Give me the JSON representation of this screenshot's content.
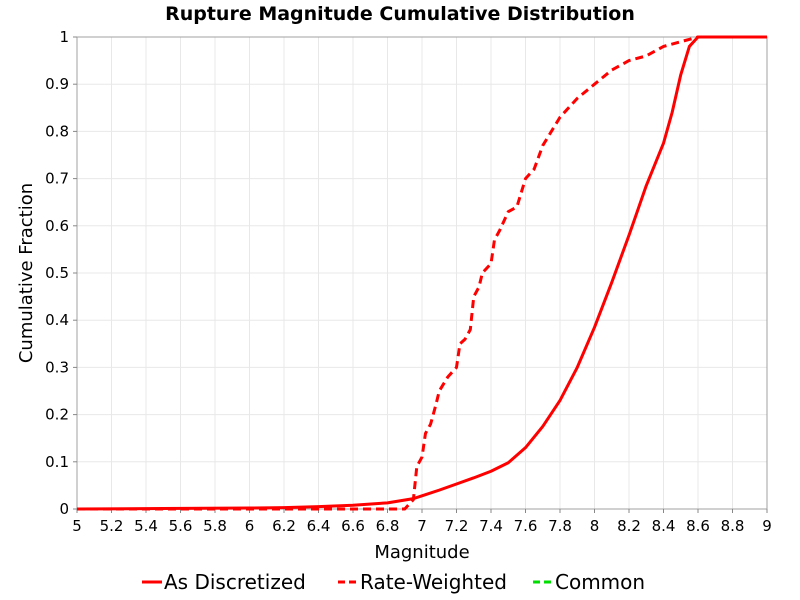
{
  "chart_data": {
    "type": "line",
    "title": "Rupture Magnitude Cumulative Distribution",
    "xlabel": "Magnitude",
    "ylabel": "Cumulative Fraction",
    "xlim": [
      5,
      9
    ],
    "ylim": [
      0,
      1
    ],
    "grid": true,
    "legend_position": "bottom",
    "x_ticks": [
      "5",
      "5.2",
      "5.4",
      "5.6",
      "5.8",
      "6",
      "6.2",
      "6.4",
      "6.6",
      "6.8",
      "7",
      "7.2",
      "7.4",
      "7.6",
      "7.8",
      "8",
      "8.2",
      "8.4",
      "8.6",
      "8.8",
      "9"
    ],
    "y_ticks": [
      "0",
      "0.1",
      "0.2",
      "0.3",
      "0.4",
      "0.5",
      "0.6",
      "0.7",
      "0.8",
      "0.9",
      "1"
    ],
    "series": [
      {
        "name": "As Discretized",
        "color": "#ff0000",
        "dash": "solid",
        "x": [
          5.0,
          5.5,
          6.0,
          6.2,
          6.4,
          6.6,
          6.8,
          6.95,
          7.0,
          7.1,
          7.2,
          7.3,
          7.4,
          7.5,
          7.6,
          7.7,
          7.8,
          7.9,
          8.0,
          8.1,
          8.2,
          8.3,
          8.4,
          8.45,
          8.5,
          8.55,
          8.6,
          8.7,
          9.0
        ],
        "y": [
          0.0,
          0.001,
          0.002,
          0.003,
          0.005,
          0.008,
          0.013,
          0.022,
          0.028,
          0.04,
          0.053,
          0.066,
          0.08,
          0.098,
          0.13,
          0.175,
          0.23,
          0.3,
          0.385,
          0.48,
          0.58,
          0.685,
          0.775,
          0.84,
          0.92,
          0.98,
          1.0,
          1.0,
          1.0
        ]
      },
      {
        "name": "Rate-Weighted",
        "color": "#ff0000",
        "dash": "dashed",
        "x": [
          5.0,
          6.0,
          6.5,
          6.9,
          6.95,
          6.97,
          7.0,
          7.02,
          7.05,
          7.08,
          7.1,
          7.15,
          7.2,
          7.22,
          7.25,
          7.28,
          7.3,
          7.33,
          7.35,
          7.4,
          7.42,
          7.45,
          7.5,
          7.55,
          7.6,
          7.65,
          7.7,
          7.75,
          7.8,
          7.85,
          7.9,
          8.0,
          8.1,
          8.2,
          8.3,
          8.4,
          8.5,
          8.6,
          8.7,
          9.0
        ],
        "y": [
          0.0,
          0.0,
          0.0,
          0.0,
          0.02,
          0.09,
          0.11,
          0.16,
          0.18,
          0.22,
          0.25,
          0.28,
          0.3,
          0.35,
          0.36,
          0.38,
          0.45,
          0.47,
          0.5,
          0.52,
          0.57,
          0.59,
          0.63,
          0.64,
          0.7,
          0.72,
          0.77,
          0.8,
          0.83,
          0.85,
          0.87,
          0.9,
          0.93,
          0.95,
          0.96,
          0.98,
          0.99,
          1.0,
          1.0,
          1.0
        ]
      },
      {
        "name": "Common",
        "color": "#00dd00",
        "dash": "dashed",
        "x": [],
        "y": []
      }
    ]
  }
}
